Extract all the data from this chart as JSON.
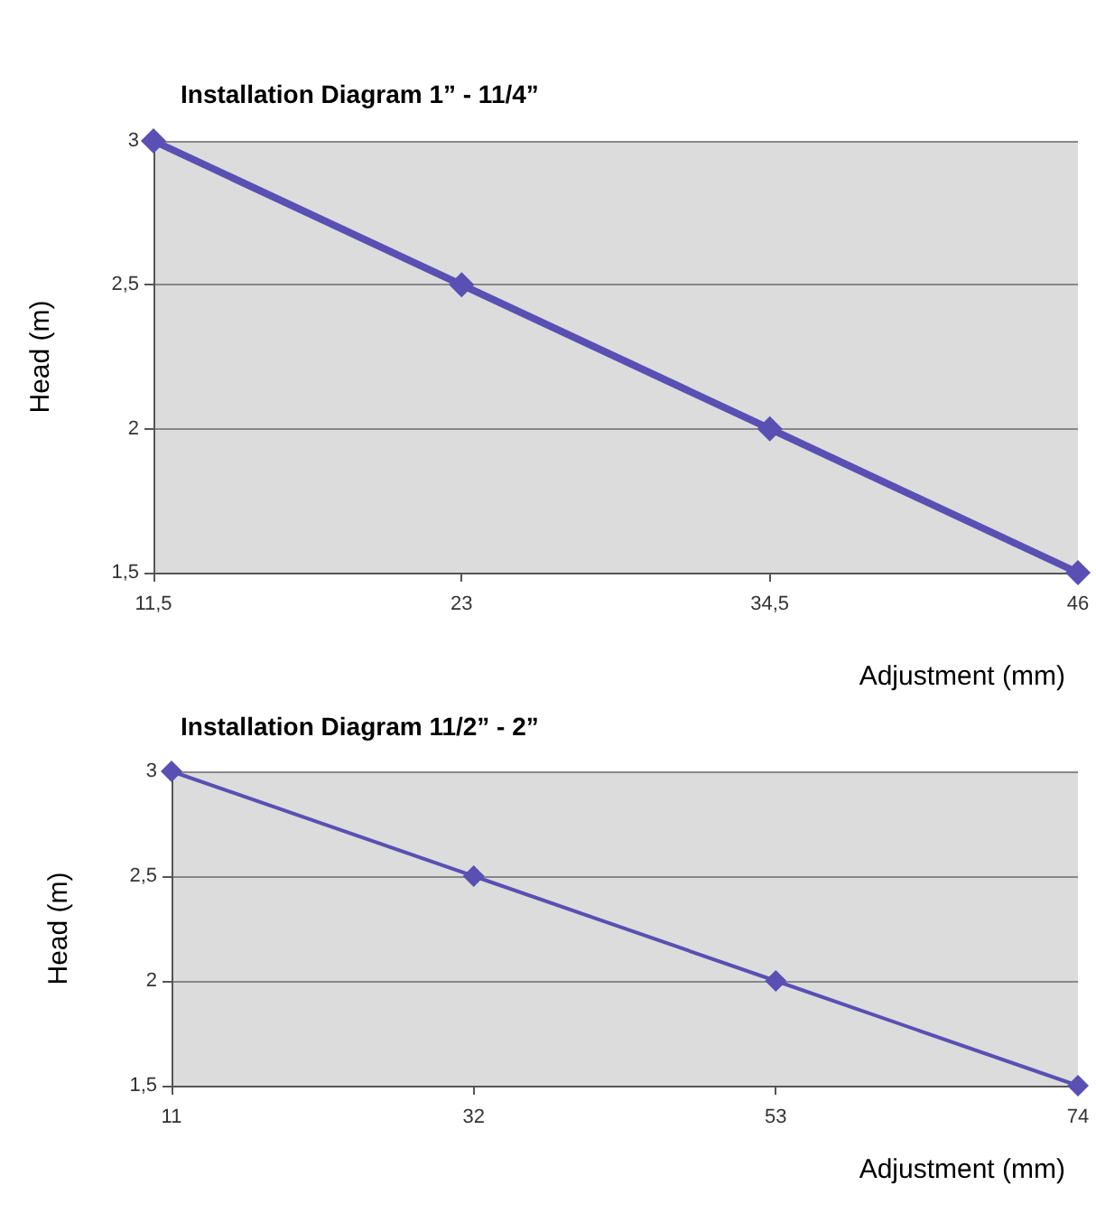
{
  "chart_data": [
    {
      "type": "line",
      "title": "Installation Diagram 1” - 11/4”",
      "xlabel": "Adjustment (mm)",
      "ylabel": "Head (m)",
      "categories": [
        "11,5",
        "23",
        "34,5",
        "46"
      ],
      "series": [
        {
          "color": "#5a4fb3",
          "values": [
            3,
            2.5,
            2,
            1.5
          ]
        }
      ],
      "ylim": [
        1.5,
        3
      ],
      "yticks": [
        {
          "value": 1.5,
          "label": "1,5"
        },
        {
          "value": 2,
          "label": "2"
        },
        {
          "value": 2.5,
          "label": "2,5"
        },
        {
          "value": 3,
          "label": "3"
        }
      ],
      "grid": "y",
      "marker": "diamond",
      "line_style": "solid"
    },
    {
      "type": "line",
      "title": "Installation Diagram 11/2” - 2”",
      "xlabel": "Adjustment (mm)",
      "ylabel": "Head (m)",
      "categories": [
        "11",
        "32",
        "53",
        "74"
      ],
      "series": [
        {
          "color": "#5a4fb3",
          "values": [
            3,
            2.5,
            2,
            1.5
          ]
        }
      ],
      "ylim": [
        1.5,
        3
      ],
      "yticks": [
        {
          "value": 1.5,
          "label": "1,5"
        },
        {
          "value": 2,
          "label": "2"
        },
        {
          "value": 2.5,
          "label": "2,5"
        },
        {
          "value": 3,
          "label": "3"
        }
      ],
      "grid": "y",
      "marker": "diamond",
      "line_style": "solid"
    }
  ]
}
